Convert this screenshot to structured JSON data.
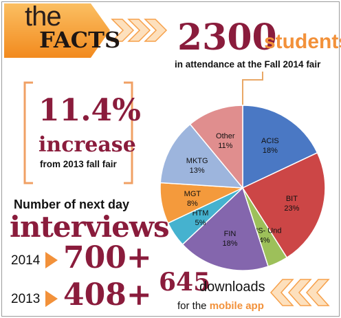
{
  "header": {
    "the": "the",
    "facts": "FACTS"
  },
  "attendance": {
    "number": "2300",
    "unit": "students",
    "caption": "in attendance at the Fall 2014 fair"
  },
  "increase": {
    "percent": "11.4%",
    "word": "increase",
    "caption": "from 2013 fall fair"
  },
  "interviews": {
    "heading": "Number of next day",
    "word": "interviews",
    "rows": [
      {
        "year": "2014",
        "value": "700+"
      },
      {
        "year": "2013",
        "value": "408+"
      }
    ]
  },
  "downloads": {
    "number": "645",
    "word": "downloads",
    "caption_prefix": "for the",
    "caption_highlight": "mobile app"
  },
  "colors": {
    "maroon": "#8a1c3c",
    "orange": "#f2913a"
  },
  "chart_data": {
    "type": "pie",
    "title": "",
    "categories": [
      "ACIS",
      "BIT",
      "BUS- Und",
      "FIN",
      "HTM",
      "MGT",
      "MKTG",
      "Other"
    ],
    "values": [
      18,
      23,
      4,
      18,
      5,
      8,
      13,
      11
    ],
    "labels": [
      "18%",
      "23%",
      "4%",
      "18%",
      "5%",
      "8%",
      "13%",
      "11%"
    ],
    "colors": [
      "#4a78c4",
      "#cc4646",
      "#9dc05a",
      "#8466ad",
      "#45b2cf",
      "#f49a3c",
      "#9db5dd",
      "#e08e8e"
    ],
    "legend": "none"
  }
}
